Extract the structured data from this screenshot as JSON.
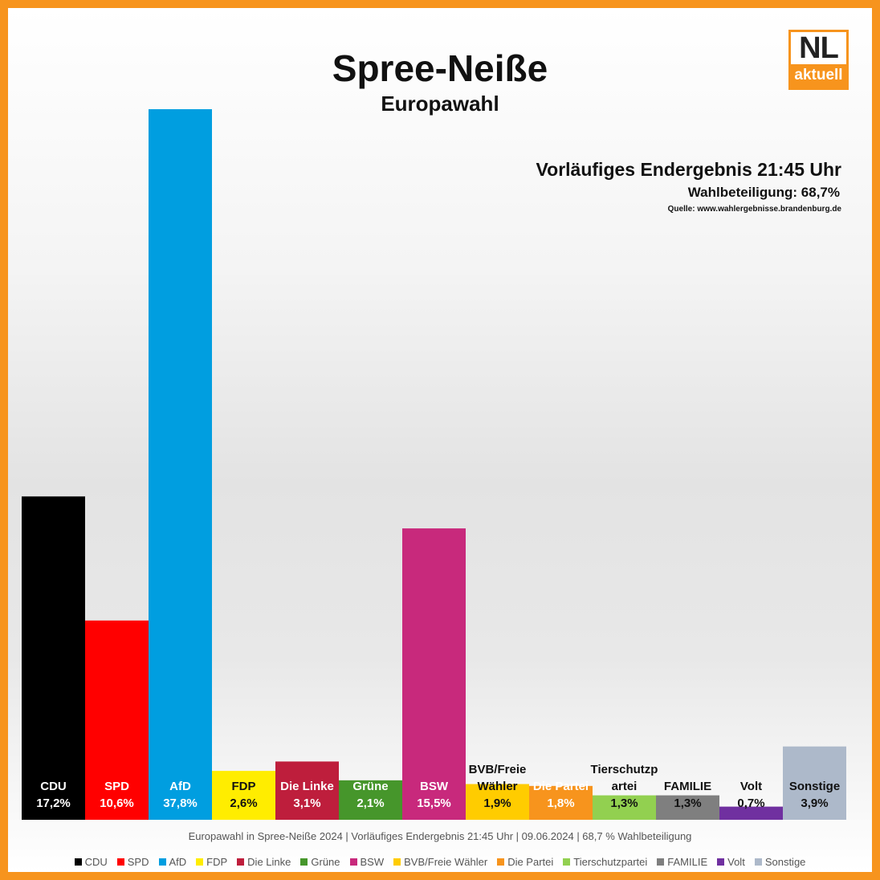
{
  "title": "Spree-Neiße",
  "subtitle": "Europawahl",
  "logo": {
    "main": "NL",
    "sub": "aktuell"
  },
  "info": {
    "headline": "Vorläufiges Endergebnis 21:45 Uhr",
    "turnout": "Wahlbeteiligung:  68,7%",
    "source": "Quelle: www.wahlergebnisse.brandenburg.de"
  },
  "footer": "Europawahl in Spree-Neiße 2024 | Vorläufiges Endergebnis 21:45 Uhr | 09.06.2024 | 68,7 % Wahlbeteiligung",
  "chart_data": {
    "type": "bar",
    "title": "Spree-Neiße",
    "subtitle": "Europawahl",
    "grid": false,
    "legend_position": "bottom",
    "categories": [
      "CDU",
      "SPD",
      "AfD",
      "FDP",
      "Die Linke",
      "Grüne",
      "BSW",
      "BVB/Freie Wähler",
      "Die Partei",
      "Tierschutzpartei",
      "FAMILIE",
      "Volt",
      "Sonstige"
    ],
    "values": [
      17.2,
      10.6,
      37.8,
      2.6,
      3.1,
      2.1,
      15.5,
      1.9,
      1.8,
      1.3,
      1.3,
      0.7,
      3.9
    ],
    "bar_labels": [
      [
        "CDU",
        "17,2%"
      ],
      [
        "SPD",
        "10,6%"
      ],
      [
        "AfD",
        "37,8%"
      ],
      [
        "FDP",
        "2,6%"
      ],
      [
        "Die Linke",
        "3,1%"
      ],
      [
        "Grüne",
        "2,1%"
      ],
      [
        "BSW",
        "15,5%"
      ],
      [
        "BVB/Freie",
        "Wähler",
        "1,9%"
      ],
      [
        "Die Partei",
        "1,8%"
      ],
      [
        "Tierschutzp",
        "artei",
        "1,3%"
      ],
      [
        "FAMILIE",
        "1,3%"
      ],
      [
        "Volt",
        "0,7%"
      ],
      [
        "Sonstige",
        "3,9%"
      ]
    ],
    "colors": [
      "#000000",
      "#ff0000",
      "#009ee0",
      "#ffed00",
      "#be1e3c",
      "#46962b",
      "#c8297c",
      "#ffcc00",
      "#f7941d",
      "#92d050",
      "#7f7f7f",
      "#7030a0",
      "#adb9ca"
    ],
    "legend": [
      "CDU",
      "SPD",
      "AfD",
      "FDP",
      "Die Linke",
      "Grüne",
      "BSW",
      "BVB/Freie Wähler",
      "Die Partei",
      "Tierschutzpartei",
      "FAMILIE",
      "Volt",
      "Sonstige"
    ]
  }
}
